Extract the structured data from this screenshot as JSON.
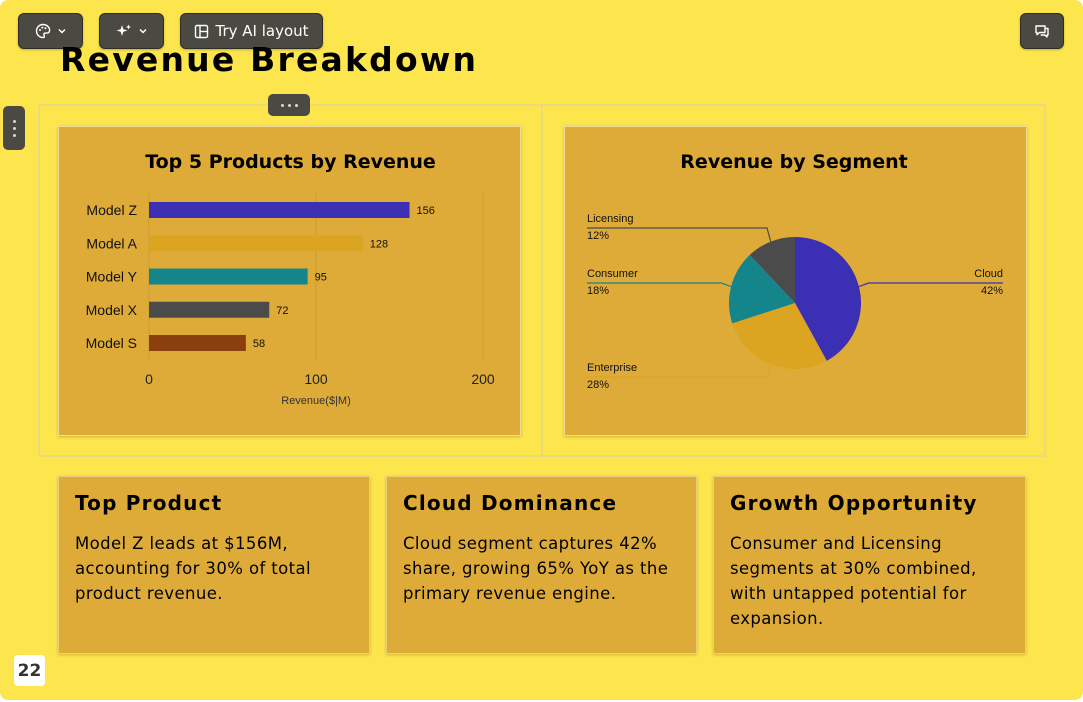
{
  "toolbar": {
    "theme_icon": "palette-icon",
    "ai_icon": "sparkle-icon",
    "layout_icon": "layout-icon",
    "layout_label": "Try AI layout",
    "comment_icon": "comment-icon"
  },
  "slide": {
    "title": "Revenue Breakdown",
    "page_number": "22"
  },
  "colors": {
    "slide_bg": "#fde64d",
    "card_bg": "#deab38",
    "indigo": "#3b2fb3",
    "gold": "#dca521",
    "teal": "#14858a",
    "charcoal": "#4b4b4b",
    "brown": "#8a3f0f"
  },
  "chart_data": [
    {
      "type": "bar",
      "orientation": "horizontal",
      "title": "Top 5 Products by Revenue",
      "xlabel": "Revenue($|M)",
      "ylabel": "",
      "categories": [
        "Model Z",
        "Model A",
        "Model Y",
        "Model X",
        "Model S"
      ],
      "values": [
        156,
        128,
        95,
        72,
        58
      ],
      "data_labels": [
        "156",
        "128",
        "95",
        "72",
        "58"
      ],
      "colors": [
        "#3b2fb3",
        "#dca521",
        "#14858a",
        "#4b4b4b",
        "#8a3f0f"
      ],
      "xlim": [
        0,
        200
      ],
      "x_ticks": [
        "0",
        "100",
        "200"
      ],
      "grid": true
    },
    {
      "type": "pie",
      "title": "Revenue by Segment",
      "slices": [
        {
          "label": "Cloud",
          "pct": "42%",
          "value": 42,
          "color": "#3b2fb3"
        },
        {
          "label": "Enterprise",
          "pct": "28%",
          "value": 28,
          "color": "#dca521"
        },
        {
          "label": "Consumer",
          "pct": "18%",
          "value": 18,
          "color": "#14858a"
        },
        {
          "label": "Licensing",
          "pct": "12%",
          "value": 12,
          "color": "#4b4b4b"
        }
      ]
    }
  ],
  "insights": [
    {
      "title": "Top Product",
      "body": "Model Z leads at $156M, accounting for 30% of total product revenue."
    },
    {
      "title": "Cloud Dominance",
      "body": "Cloud segment captures 42% share, growing 65% YoY as the primary revenue engine."
    },
    {
      "title": "Growth Opportunity",
      "body": "Consumer and Licensing segments at 30% combined, with untapped potential for expansion."
    }
  ]
}
